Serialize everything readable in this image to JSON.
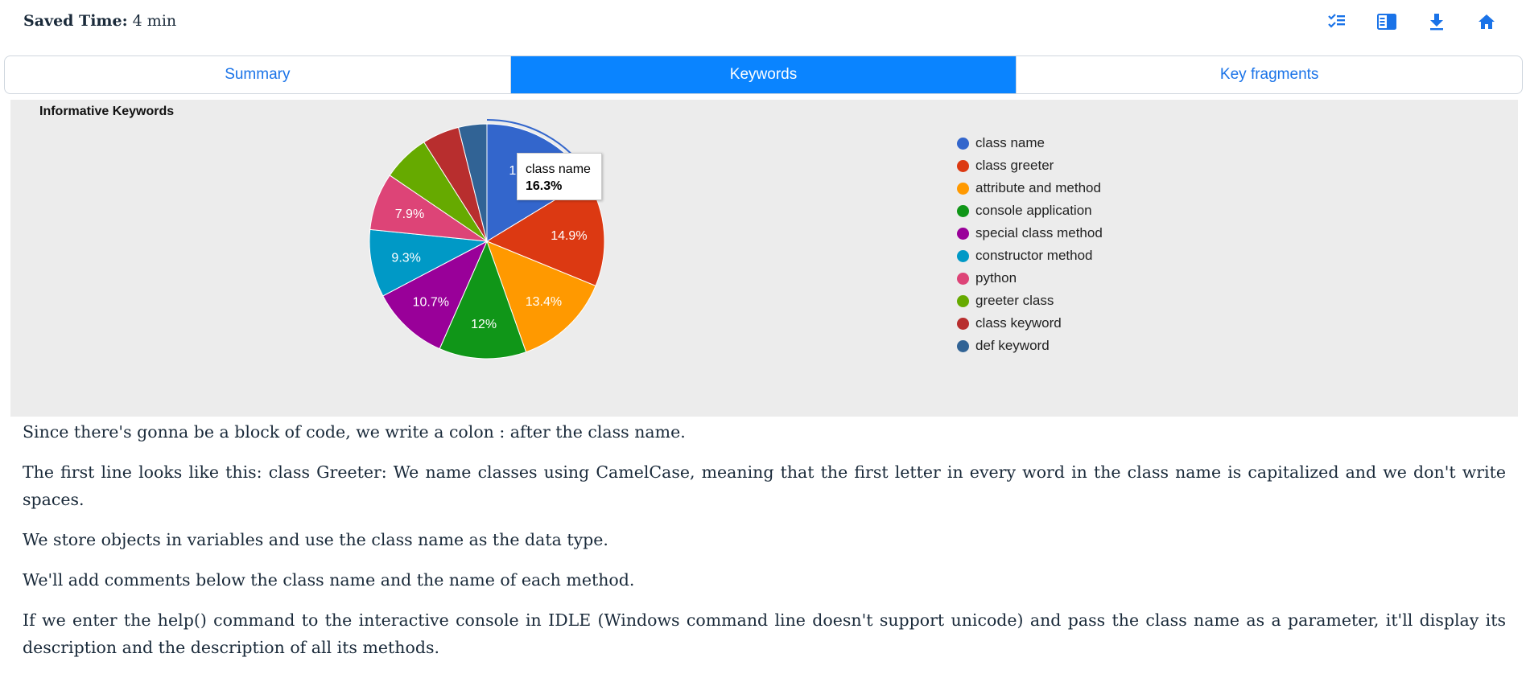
{
  "header": {
    "saved_label": "Saved Time:",
    "saved_value": "4 min",
    "icons": [
      "checklist-icon",
      "reader-view-icon",
      "download-icon",
      "home-icon"
    ]
  },
  "tabs": [
    {
      "label": "Summary",
      "active": false
    },
    {
      "label": "Keywords",
      "active": true
    },
    {
      "label": "Key fragments",
      "active": false
    }
  ],
  "chart": {
    "title": "Informative Keywords",
    "tooltip": {
      "label": "class name",
      "value": "16.3%"
    }
  },
  "chart_data": {
    "type": "pie",
    "title": "Informative Keywords",
    "legend_placement": "right",
    "categories": [
      "class name",
      "class greeter",
      "attribute and method",
      "console application",
      "special class method",
      "constructor method",
      "python",
      "greeter class",
      "class keyword",
      "def keyword"
    ],
    "values": [
      16.3,
      14.9,
      13.4,
      12,
      10.7,
      9.3,
      7.9,
      6.5,
      5.1,
      3.9
    ],
    "labels": [
      "16.3%",
      "14.9%",
      "13.4%",
      "12%",
      "10.7%",
      "9.3%",
      "7.9%",
      "",
      "",
      ""
    ],
    "colors": [
      "#3366cc",
      "#dc3912",
      "#ff9900",
      "#109618",
      "#990099",
      "#0099c6",
      "#dd4477",
      "#66aa00",
      "#b82e2e",
      "#316395"
    ]
  },
  "paragraphs": [
    "Since there's gonna be a block of code, we write a colon : after the class name.",
    "The first line looks like this: class Greeter: We name classes using CamelCase, meaning that the first letter in every word in the class name is capitalized and we don't write spaces.",
    "We store objects in variables and use the class name as the data type.",
    "We'll add comments below the class name and the name of each method.",
    "If we enter the help() command to the interactive console in IDLE (Windows command line doesn't support unicode) and pass the class name as a parameter, it'll display its description and the description of all its methods."
  ]
}
